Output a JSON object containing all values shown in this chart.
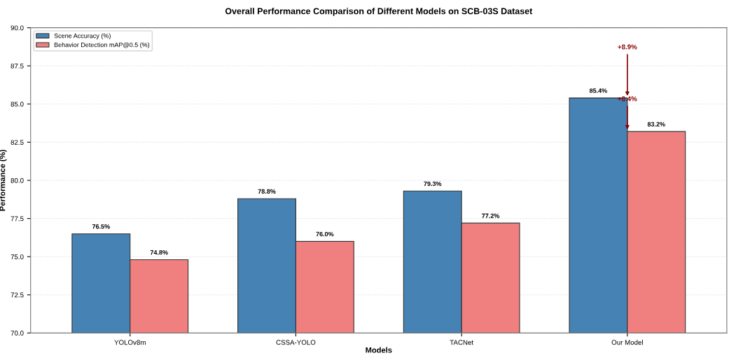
{
  "chart_data": {
    "type": "bar",
    "title": "Overall Performance Comparison of Different Models on SCB-03S Dataset",
    "xlabel": "Models",
    "ylabel": "Performance (%)",
    "categories": [
      "YOLOv8m",
      "CSSA-YOLO",
      "TACNet",
      "Our Model"
    ],
    "series": [
      {
        "name": "Scene Accuracy (%)",
        "color": "#4682b4",
        "values": [
          76.5,
          78.8,
          79.3,
          85.4
        ],
        "value_labels": [
          "76.5%",
          "78.8%",
          "79.3%",
          "85.4%"
        ]
      },
      {
        "name": "Behavior Detection mAP@0.5 (%)",
        "color": "#f08080",
        "values": [
          74.8,
          76.0,
          77.2,
          83.2
        ],
        "value_labels": [
          "74.8%",
          "76.0%",
          "77.2%",
          "83.2%"
        ]
      }
    ],
    "ylim": [
      70,
      90
    ],
    "yticks": [
      {
        "value": 70,
        "label": "70.0"
      },
      {
        "value": 72.5,
        "label": "72.5"
      },
      {
        "value": 75,
        "label": "75.0"
      },
      {
        "value": 77.5,
        "label": "77.5"
      },
      {
        "value": 80,
        "label": "80.0"
      },
      {
        "value": 82.5,
        "label": "82.5"
      },
      {
        "value": 85,
        "label": "85.0"
      },
      {
        "value": 87.5,
        "label": "87.5"
      },
      {
        "value": 90,
        "label": "90.0"
      }
    ],
    "annotations": [
      {
        "text": "+8.9%",
        "x": "Our Model",
        "y": 85.4
      },
      {
        "text": "+8.4%",
        "x": "Our Model",
        "y": 83.2
      }
    ],
    "grid": "y",
    "legend": "top left"
  }
}
